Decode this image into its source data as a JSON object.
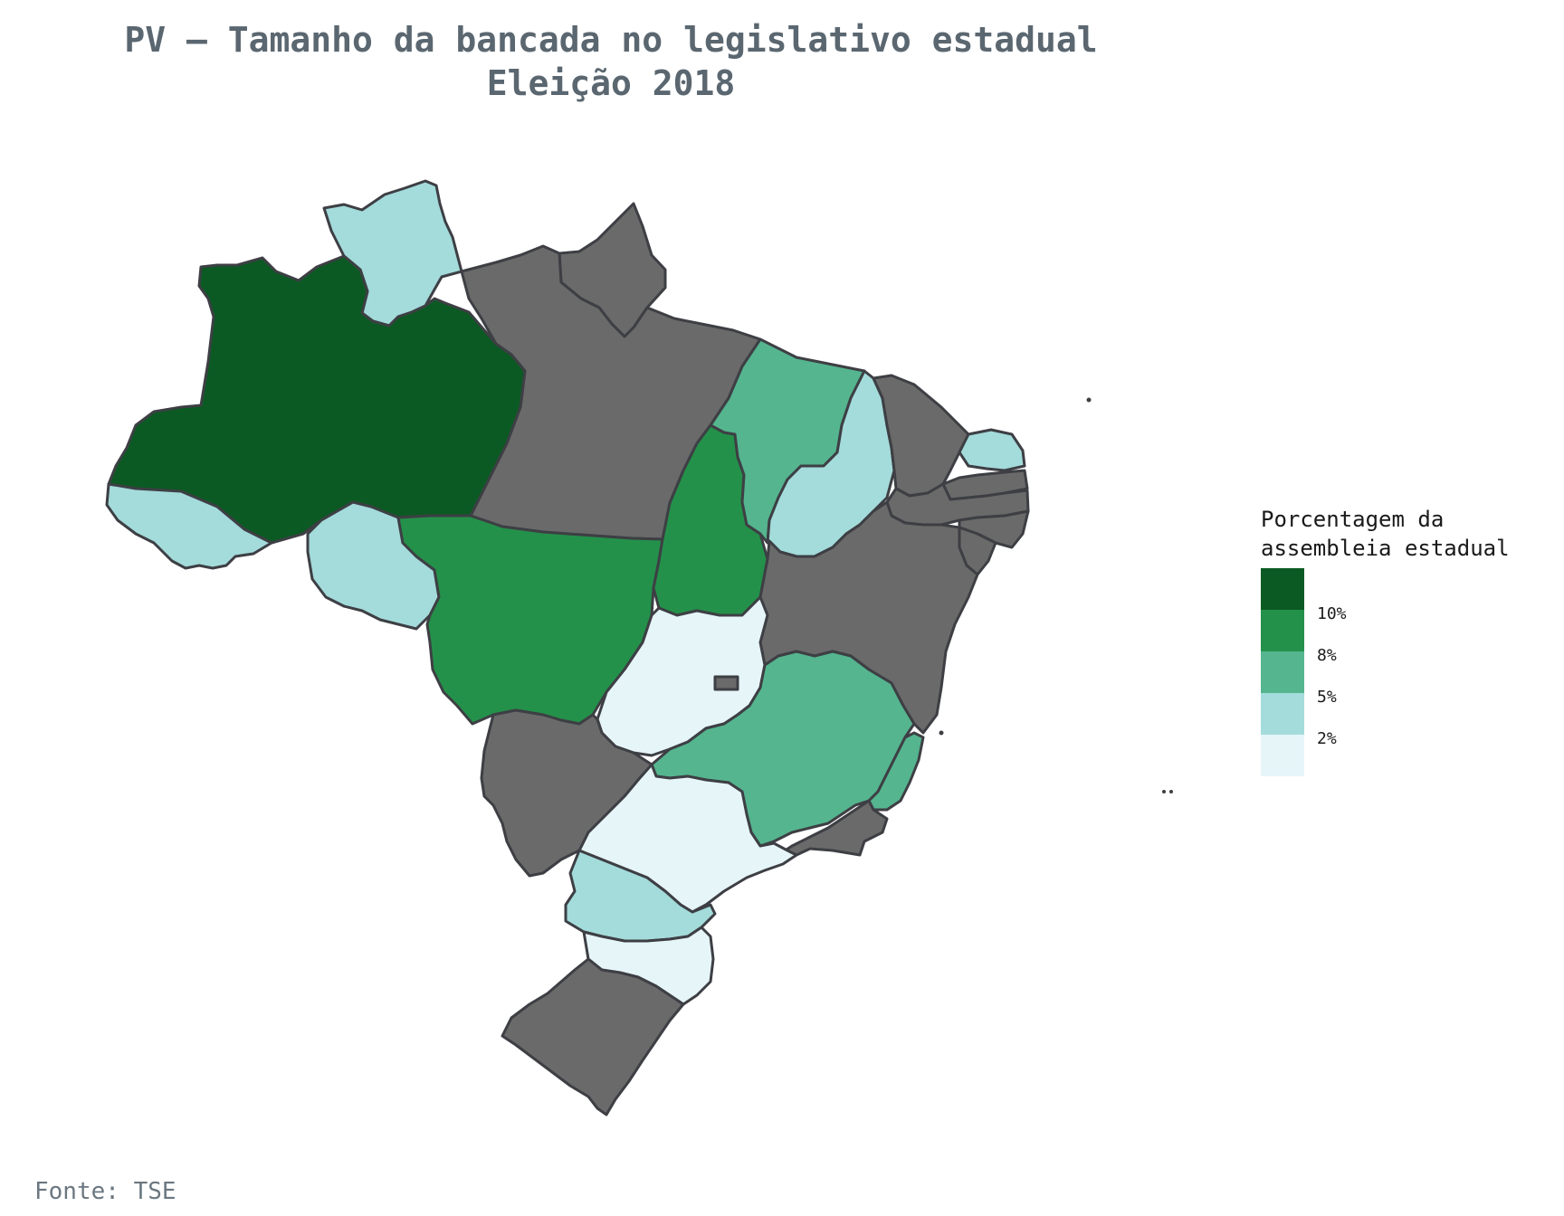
{
  "title": {
    "line1": "PV – Tamanho da bancada no legislativo estadual",
    "line2": "Eleição 2018"
  },
  "legend": {
    "title_line1": "Porcentagem da",
    "title_line2": "assembleia estadual",
    "ticks": [
      "10%",
      "8%",
      "5%",
      "2%"
    ],
    "colors": [
      "#0b5a23",
      "#24914a",
      "#55b58f",
      "#a4dbdb",
      "#e6f5f8"
    ]
  },
  "source": "Fonte: TSE",
  "no_data_color": "#6a6a6a",
  "states": [
    {
      "id": "RR",
      "bin": 3
    },
    {
      "id": "AM",
      "bin": 0
    },
    {
      "id": "AC",
      "bin": 3
    },
    {
      "id": "RO",
      "bin": 3
    },
    {
      "id": "MT",
      "bin": 1
    },
    {
      "id": "TO",
      "bin": 1
    },
    {
      "id": "MA",
      "bin": 2
    },
    {
      "id": "PI",
      "bin": 3
    },
    {
      "id": "RN",
      "bin": 3
    },
    {
      "id": "MG",
      "bin": 2
    },
    {
      "id": "ES",
      "bin": 2
    },
    {
      "id": "GO",
      "bin": 4
    },
    {
      "id": "SP",
      "bin": 4
    },
    {
      "id": "PR",
      "bin": 3
    },
    {
      "id": "SC",
      "bin": 4
    },
    {
      "id": "PA",
      "bin": null
    },
    {
      "id": "AP",
      "bin": null
    },
    {
      "id": "CE",
      "bin": null
    },
    {
      "id": "PB",
      "bin": null
    },
    {
      "id": "PE",
      "bin": null
    },
    {
      "id": "AL",
      "bin": null
    },
    {
      "id": "SE",
      "bin": null
    },
    {
      "id": "BA",
      "bin": null
    },
    {
      "id": "MS",
      "bin": null
    },
    {
      "id": "RJ",
      "bin": null
    },
    {
      "id": "RS",
      "bin": null
    },
    {
      "id": "DF",
      "bin": null
    }
  ]
}
